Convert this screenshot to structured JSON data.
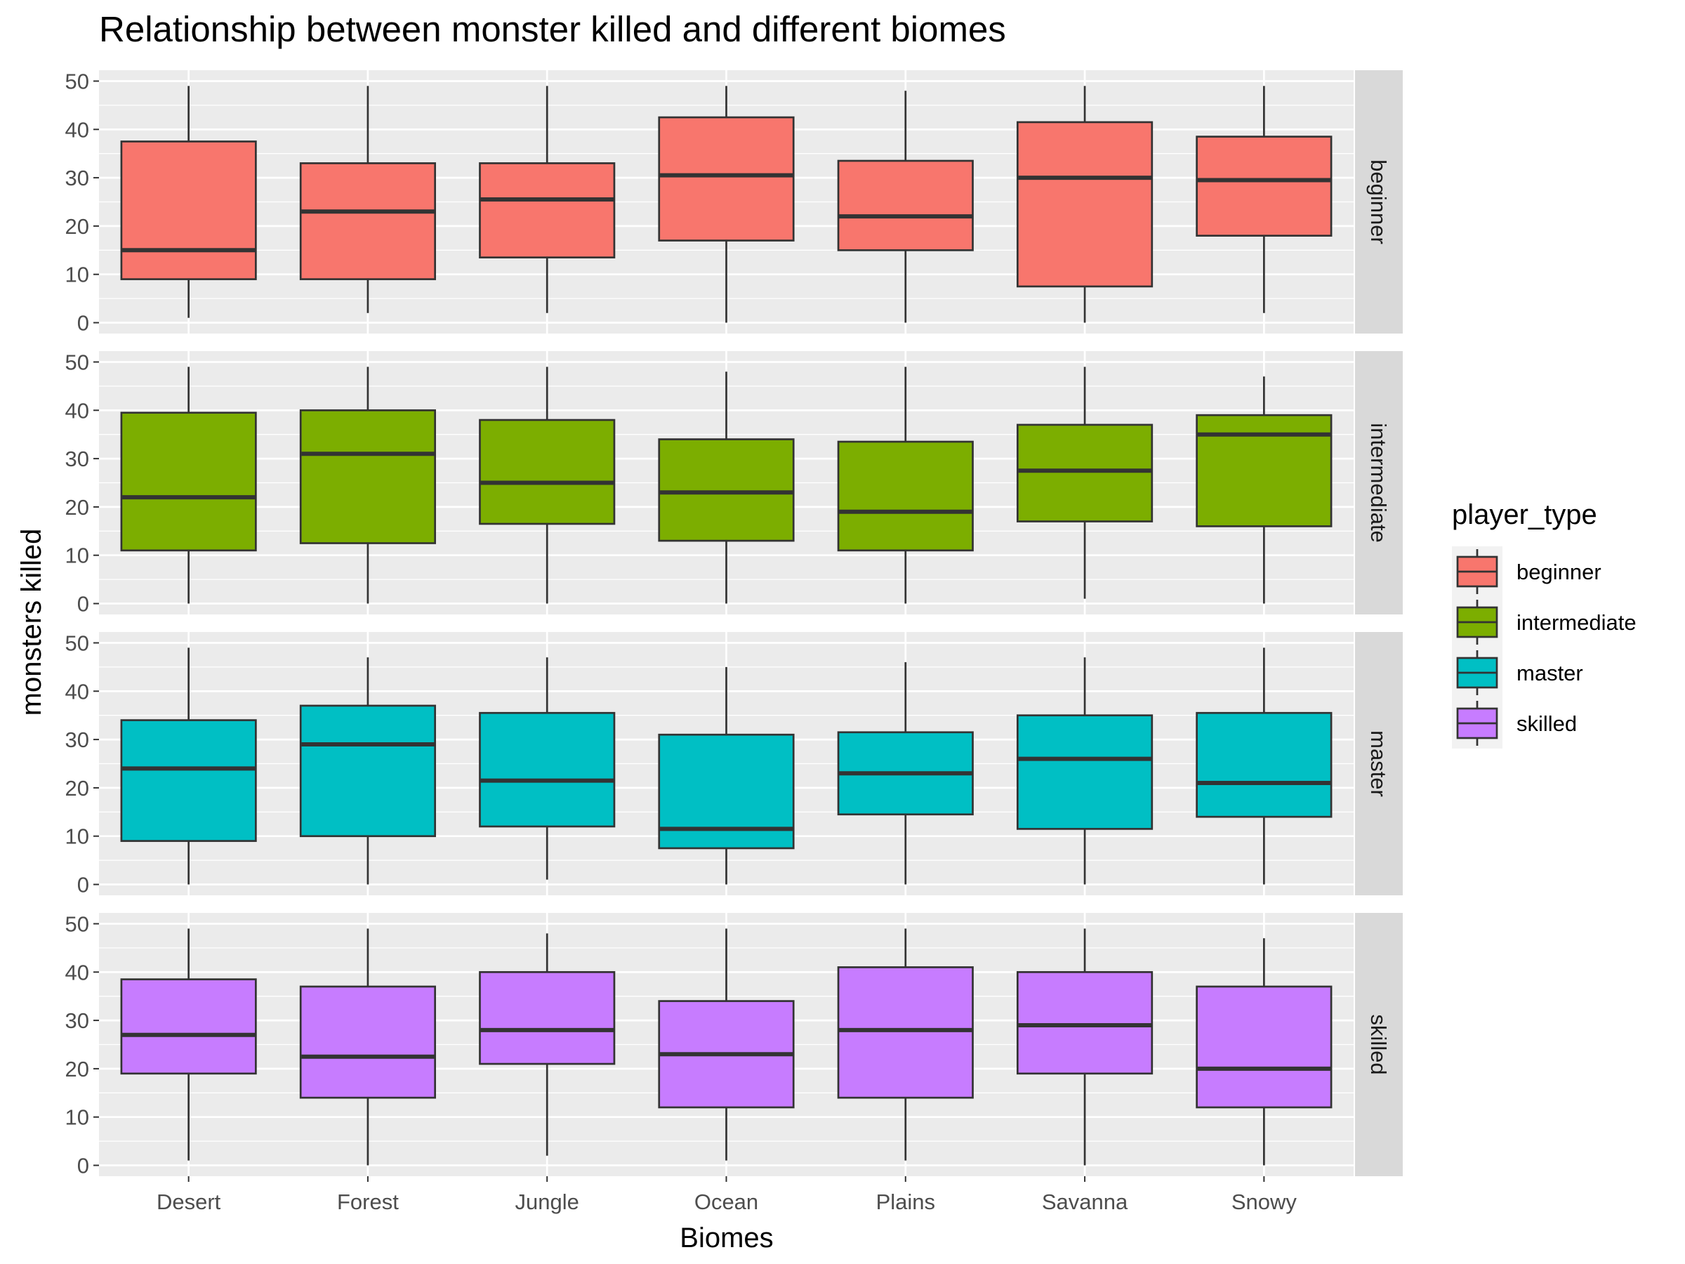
{
  "chart_data": {
    "type": "boxplot",
    "title": "Relationship between monster killed and different biomes",
    "xlabel": "Biomes",
    "ylabel": "monsters killed",
    "ylim": [
      0,
      50
    ],
    "yticks": [
      0,
      10,
      20,
      30,
      40,
      50
    ],
    "grid": true,
    "categories": [
      "Desert",
      "Forest",
      "Jungle",
      "Ocean",
      "Plains",
      "Savanna",
      "Snowy"
    ],
    "legend": {
      "title": "player_type",
      "placement": "right",
      "entries": [
        "beginner",
        "intermediate",
        "master",
        "skilled"
      ]
    },
    "facets": [
      {
        "name": "beginner",
        "color": "#F8766D",
        "boxes": [
          {
            "min": 1,
            "q1": 9,
            "median": 15,
            "q3": 37.5,
            "max": 49
          },
          {
            "min": 2,
            "q1": 9,
            "median": 23,
            "q3": 33,
            "max": 49
          },
          {
            "min": 2,
            "q1": 13.5,
            "median": 25.5,
            "q3": 33,
            "max": 49
          },
          {
            "min": 0,
            "q1": 17,
            "median": 30.5,
            "q3": 42.5,
            "max": 49
          },
          {
            "min": 0,
            "q1": 15,
            "median": 22,
            "q3": 33.5,
            "max": 48
          },
          {
            "min": 0,
            "q1": 7.5,
            "median": 30,
            "q3": 41.5,
            "max": 49
          },
          {
            "min": 2,
            "q1": 18,
            "median": 29.5,
            "q3": 38.5,
            "max": 49
          }
        ]
      },
      {
        "name": "intermediate",
        "color": "#7CAE00",
        "boxes": [
          {
            "min": 0,
            "q1": 11,
            "median": 22,
            "q3": 39.5,
            "max": 49
          },
          {
            "min": 0,
            "q1": 12.5,
            "median": 31,
            "q3": 40,
            "max": 49
          },
          {
            "min": 0,
            "q1": 16.5,
            "median": 25,
            "q3": 38,
            "max": 49
          },
          {
            "min": 0,
            "q1": 13,
            "median": 23,
            "q3": 34,
            "max": 48
          },
          {
            "min": 0,
            "q1": 11,
            "median": 19,
            "q3": 33.5,
            "max": 49
          },
          {
            "min": 1,
            "q1": 17,
            "median": 27.5,
            "q3": 37,
            "max": 49
          },
          {
            "min": 0,
            "q1": 16,
            "median": 35,
            "q3": 39,
            "max": 47
          }
        ]
      },
      {
        "name": "master",
        "color": "#00BFC4",
        "boxes": [
          {
            "min": 0,
            "q1": 9,
            "median": 24,
            "q3": 34,
            "max": 49
          },
          {
            "min": 0,
            "q1": 10,
            "median": 29,
            "q3": 37,
            "max": 47
          },
          {
            "min": 1,
            "q1": 12,
            "median": 21.5,
            "q3": 35.5,
            "max": 47
          },
          {
            "min": 0,
            "q1": 7.5,
            "median": 11.5,
            "q3": 31,
            "max": 45
          },
          {
            "min": 0,
            "q1": 14.5,
            "median": 23,
            "q3": 31.5,
            "max": 46
          },
          {
            "min": 0,
            "q1": 11.5,
            "median": 26,
            "q3": 35,
            "max": 47
          },
          {
            "min": 0,
            "q1": 14,
            "median": 21,
            "q3": 35.5,
            "max": 49
          }
        ]
      },
      {
        "name": "skilled",
        "color": "#C77CFF",
        "boxes": [
          {
            "min": 1,
            "q1": 19,
            "median": 27,
            "q3": 38.5,
            "max": 49
          },
          {
            "min": 0,
            "q1": 14,
            "median": 22.5,
            "q3": 37,
            "max": 49
          },
          {
            "min": 2,
            "q1": 21,
            "median": 28,
            "q3": 40,
            "max": 48
          },
          {
            "min": 1,
            "q1": 12,
            "median": 23,
            "q3": 34,
            "max": 49
          },
          {
            "min": 1,
            "q1": 14,
            "median": 28,
            "q3": 41,
            "max": 49
          },
          {
            "min": 0,
            "q1": 19,
            "median": 29,
            "q3": 40,
            "max": 49
          },
          {
            "min": 0,
            "q1": 12,
            "median": 20,
            "q3": 37,
            "max": 47
          }
        ]
      }
    ]
  }
}
